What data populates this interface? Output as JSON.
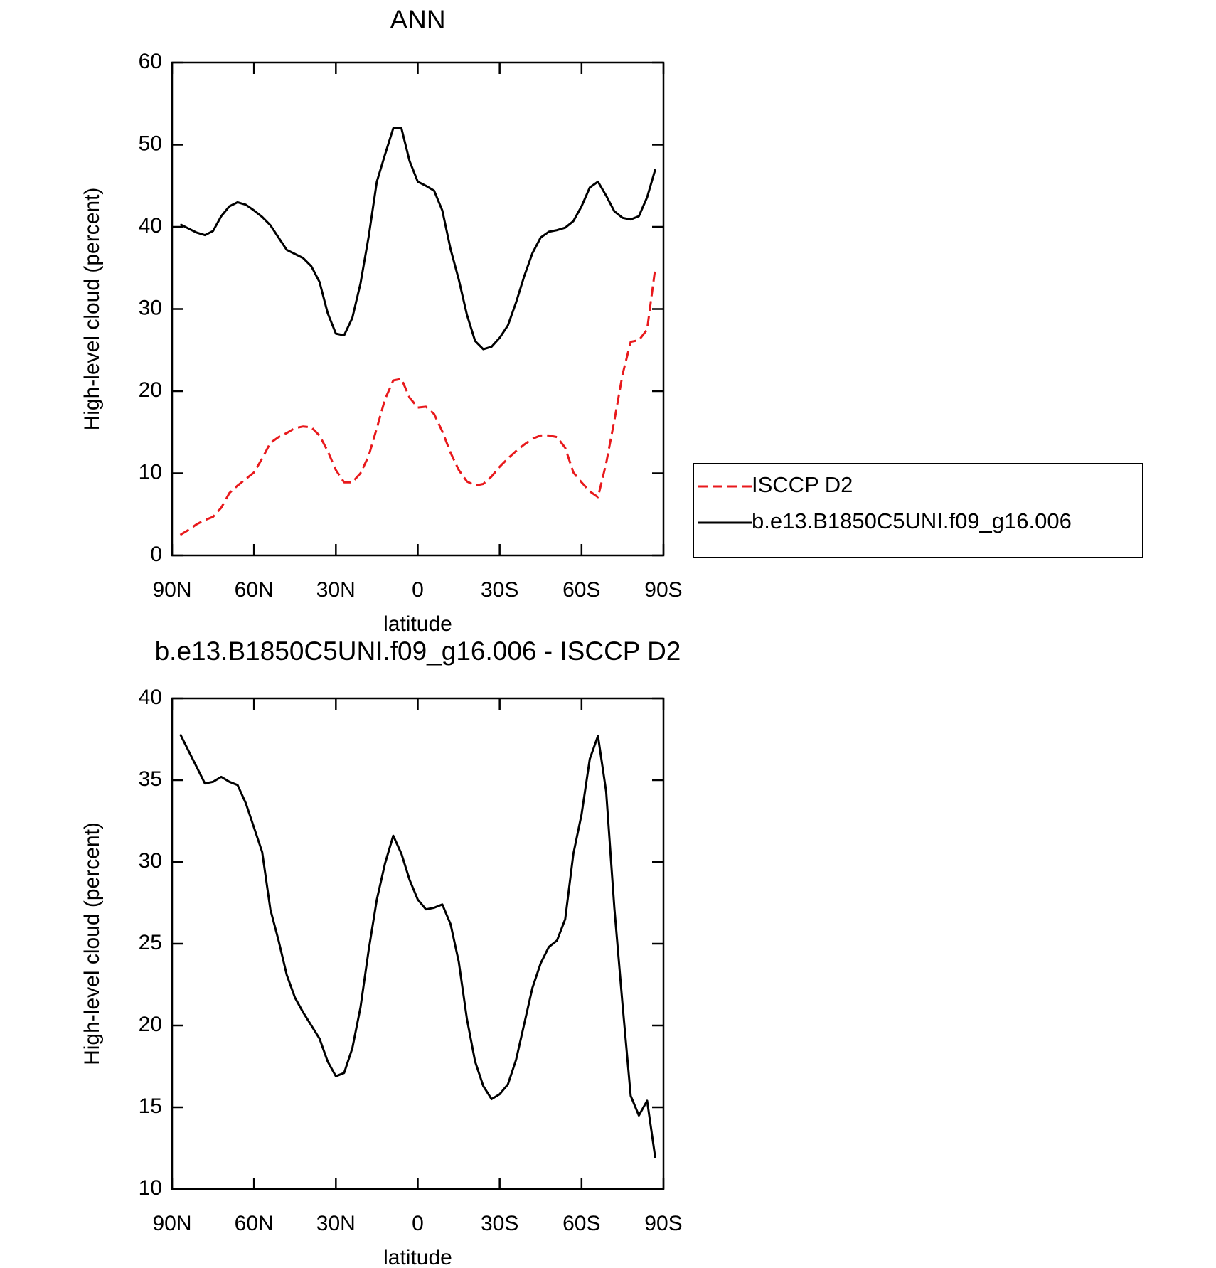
{
  "chart_data": [
    {
      "type": "line",
      "title": "ANN",
      "xlabel": "latitude",
      "ylabel": "High-level cloud (percent)",
      "x": [
        87,
        84,
        81,
        78,
        75,
        72,
        69,
        66,
        63,
        60,
        57,
        54,
        51,
        48,
        45,
        42,
        39,
        36,
        33,
        30,
        27,
        24,
        21,
        18,
        15,
        12,
        9,
        6,
        3,
        0,
        -3,
        -6,
        -9,
        -12,
        -15,
        -18,
        -21,
        -24,
        -27,
        -30,
        -33,
        -36,
        -39,
        -42,
        -45,
        -48,
        -51,
        -54,
        -57,
        -60,
        -63,
        -66,
        -69,
        -72,
        -75,
        -78,
        -81,
        -84,
        -87
      ],
      "series": [
        {
          "name": "ISCCP D2",
          "color": "#e8191c",
          "style": "dashed",
          "values": [
            2.5,
            3.1,
            3.8,
            4.3,
            4.7,
            5.8,
            7.6,
            8.5,
            9.3,
            10.1,
            11.8,
            13.7,
            14.4,
            14.9,
            15.5,
            15.7,
            15.6,
            14.6,
            12.7,
            10.4,
            8.9,
            8.9,
            10.0,
            12.1,
            15.5,
            19.0,
            21.3,
            21.5,
            19.2,
            18.0,
            18.1,
            17.2,
            15.1,
            12.5,
            10.4,
            9.0,
            8.5,
            8.7,
            9.6,
            10.8,
            11.8,
            12.7,
            13.5,
            14.2,
            14.6,
            14.6,
            14.4,
            13.1,
            10.1,
            8.9,
            7.8,
            7.1,
            11.2,
            16.4,
            22.0,
            26.0,
            26.2,
            27.5,
            35.0
          ]
        },
        {
          "name": "b.e13.B1850C5UNI.f09_g16.006",
          "color": "#000000",
          "style": "solid",
          "values": [
            40.3,
            39.8,
            39.3,
            39.0,
            39.5,
            41.3,
            42.5,
            43.0,
            42.7,
            42.0,
            41.2,
            40.2,
            38.7,
            37.2,
            36.7,
            36.2,
            35.2,
            33.3,
            29.5,
            27.0,
            26.8,
            28.9,
            33.1,
            38.8,
            45.5,
            48.8,
            52.0,
            52.0,
            48.0,
            45.5,
            45.0,
            44.4,
            42.0,
            37.3,
            33.6,
            29.3,
            26.1,
            25.1,
            25.4,
            26.5,
            28.0,
            30.8,
            34.0,
            36.8,
            38.7,
            39.4,
            39.6,
            39.9,
            40.7,
            42.5,
            44.8,
            45.5,
            43.8,
            41.9,
            41.1,
            40.9,
            41.3,
            43.6,
            47.0
          ]
        }
      ],
      "xlim": [
        90,
        -90
      ],
      "xticks": [
        {
          "value": 90,
          "label": "90N"
        },
        {
          "value": 60,
          "label": "60N"
        },
        {
          "value": 30,
          "label": "30N"
        },
        0,
        {
          "value": -30,
          "label": "30S"
        },
        {
          "value": -60,
          "label": "60S"
        },
        {
          "value": -90,
          "label": "90S"
        }
      ],
      "ylim": [
        0,
        60
      ],
      "yticks": [
        0,
        10,
        20,
        30,
        40,
        50,
        60
      ],
      "legend": "outside-right"
    },
    {
      "type": "line",
      "title": "b.e13.B1850C5UNI.f09_g16.006 - ISCCP D2",
      "xlabel": "latitude",
      "ylabel": "High-level cloud (percent)",
      "x": [
        87,
        84,
        81,
        78,
        75,
        72,
        69,
        66,
        63,
        60,
        57,
        54,
        51,
        48,
        45,
        42,
        39,
        36,
        33,
        30,
        27,
        24,
        21,
        18,
        15,
        12,
        9,
        6,
        3,
        0,
        -3,
        -6,
        -9,
        -12,
        -15,
        -18,
        -21,
        -24,
        -27,
        -30,
        -33,
        -36,
        -39,
        -42,
        -45,
        -48,
        -51,
        -54,
        -57,
        -60,
        -63,
        -66,
        -69,
        -72,
        -75,
        -78,
        -81,
        -84,
        -87
      ],
      "series": [
        {
          "color": "#000000",
          "style": "solid",
          "values": [
            37.8,
            36.8,
            35.8,
            34.8,
            34.9,
            35.2,
            34.9,
            34.7,
            33.6,
            32.1,
            30.6,
            27.1,
            25.2,
            23.1,
            21.7,
            20.8,
            20.0,
            19.2,
            17.8,
            16.9,
            17.1,
            18.6,
            21.1,
            24.6,
            27.7,
            29.9,
            31.6,
            30.5,
            28.9,
            27.7,
            27.1,
            27.2,
            27.4,
            26.2,
            23.9,
            20.4,
            17.8,
            16.3,
            15.5,
            15.8,
            16.4,
            17.9,
            20.1,
            22.3,
            23.8,
            24.8,
            25.2,
            26.5,
            30.5,
            32.9,
            36.3,
            37.7,
            34.3,
            27.2,
            21.3,
            15.7,
            14.5,
            15.4,
            11.9
          ]
        }
      ],
      "xlim": [
        90,
        -90
      ],
      "xticks": [
        {
          "value": 90,
          "label": "90N"
        },
        {
          "value": 60,
          "label": "60N"
        },
        {
          "value": 30,
          "label": "30N"
        },
        0,
        {
          "value": -30,
          "label": "30S"
        },
        {
          "value": -60,
          "label": "60S"
        },
        {
          "value": -90,
          "label": "90S"
        }
      ],
      "ylim": [
        10,
        40
      ],
      "yticks": [
        10,
        15,
        20,
        25,
        30,
        35,
        40
      ]
    }
  ]
}
